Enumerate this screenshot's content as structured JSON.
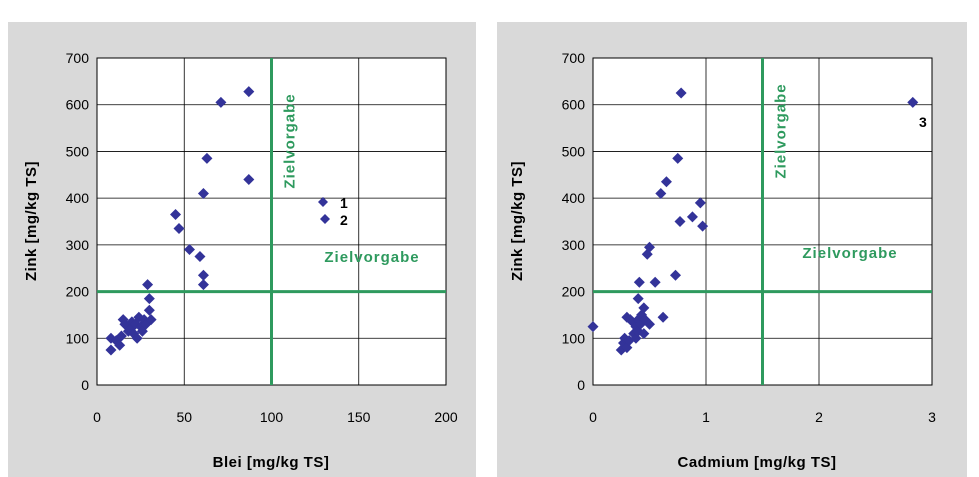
{
  "colors": {
    "panel_bg": "#d9d9d9",
    "plot_bg": "#ffffff",
    "marker": "#333399",
    "target_line": "#2e9a5e"
  },
  "chart_data": [
    {
      "type": "scatter",
      "xlabel": "Blei [mg/kg TS]",
      "ylabel": "Zink [mg/kg TS]",
      "xlim": [
        0,
        200
      ],
      "ylim": [
        0,
        700
      ],
      "xticks": [
        "0",
        "50",
        "100",
        "150",
        "200"
      ],
      "yticks": [
        "0",
        "100",
        "200",
        "300",
        "400",
        "500",
        "600",
        "700"
      ],
      "grid": true,
      "target_lines": {
        "x": 100,
        "y": 200,
        "label_vertical": "Zielvorgabe",
        "label_horizontal": "Zielvorgabe"
      },
      "legend": {
        "placement": "right",
        "entries": [
          "1",
          "2"
        ]
      },
      "points": [
        [
          8,
          75
        ],
        [
          8,
          100
        ],
        [
          11,
          95
        ],
        [
          13,
          85
        ],
        [
          14,
          105
        ],
        [
          15,
          140
        ],
        [
          16,
          130
        ],
        [
          18,
          115
        ],
        [
          19,
          120
        ],
        [
          20,
          135
        ],
        [
          21,
          110
        ],
        [
          22,
          130
        ],
        [
          23,
          100
        ],
        [
          24,
          145
        ],
        [
          25,
          125
        ],
        [
          26,
          115
        ],
        [
          27,
          140
        ],
        [
          28,
          130
        ],
        [
          29,
          215
        ],
        [
          30,
          185
        ],
        [
          30,
          160
        ],
        [
          31,
          140
        ],
        [
          45,
          365
        ],
        [
          47,
          335
        ],
        [
          53,
          290
        ],
        [
          59,
          275
        ],
        [
          61,
          410
        ],
        [
          61,
          235
        ],
        [
          61,
          215
        ],
        [
          63,
          485
        ],
        [
          71,
          605
        ],
        [
          87,
          628
        ],
        [
          87,
          440
        ]
      ]
    },
    {
      "type": "scatter",
      "xlabel": "Cadmium [mg/kg TS]",
      "ylabel": "Zink [mg/kg TS]",
      "xlim": [
        0,
        3
      ],
      "ylim": [
        0,
        700
      ],
      "xticks": [
        "0",
        "1",
        "2",
        "3"
      ],
      "yticks": [
        "0",
        "100",
        "200",
        "300",
        "400",
        "500",
        "600",
        "700"
      ],
      "grid": true,
      "target_lines": {
        "x": 1.5,
        "y": 200,
        "label_vertical": "Zielvorgabe",
        "label_horizontal": "Zielvorgabe"
      },
      "point_annotations": [
        {
          "x": 2.83,
          "y": 605,
          "label": "3"
        }
      ],
      "points": [
        [
          0.0,
          125
        ],
        [
          0.25,
          75
        ],
        [
          0.27,
          90
        ],
        [
          0.28,
          100
        ],
        [
          0.3,
          80
        ],
        [
          0.3,
          145
        ],
        [
          0.32,
          95
        ],
        [
          0.33,
          140
        ],
        [
          0.35,
          135
        ],
        [
          0.36,
          110
        ],
        [
          0.38,
          125
        ],
        [
          0.38,
          100
        ],
        [
          0.4,
          140
        ],
        [
          0.4,
          115
        ],
        [
          0.4,
          185
        ],
        [
          0.41,
          220
        ],
        [
          0.42,
          130
        ],
        [
          0.43,
          150
        ],
        [
          0.45,
          110
        ],
        [
          0.45,
          165
        ],
        [
          0.46,
          140
        ],
        [
          0.48,
          280
        ],
        [
          0.5,
          295
        ],
        [
          0.5,
          130
        ],
        [
          0.55,
          220
        ],
        [
          0.6,
          410
        ],
        [
          0.62,
          145
        ],
        [
          0.65,
          435
        ],
        [
          0.73,
          235
        ],
        [
          0.75,
          485
        ],
        [
          0.77,
          350
        ],
        [
          0.78,
          625
        ],
        [
          0.88,
          360
        ],
        [
          0.95,
          390
        ],
        [
          0.97,
          340
        ],
        [
          2.83,
          605
        ]
      ]
    }
  ]
}
